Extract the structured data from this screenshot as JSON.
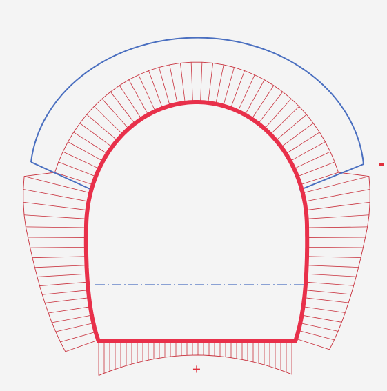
{
  "labels": {
    "minus": "-",
    "plus": "+"
  }
}
